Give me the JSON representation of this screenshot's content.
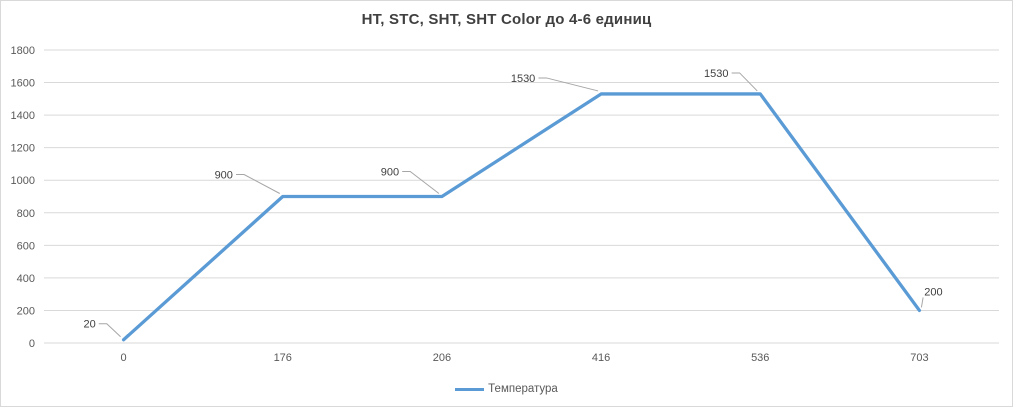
{
  "chart_data": {
    "type": "line",
    "title": "HT, STC, SHT, SHT Color до 4-6 единиц",
    "categories": [
      "0",
      "176",
      "206",
      "416",
      "536",
      "703"
    ],
    "series": [
      {
        "name": "Температура",
        "values": [
          20,
          900,
          900,
          1530,
          1530,
          200
        ]
      }
    ],
    "data_labels": [
      "20",
      "900",
      "900",
      "1530",
      "1530",
      "200"
    ],
    "yticks": [
      0,
      200,
      400,
      600,
      800,
      1000,
      1200,
      1400,
      1600,
      1800
    ],
    "ylim": [
      0,
      1800
    ],
    "grid": true,
    "legend_position": "bottom",
    "xlabel": "",
    "ylabel": "",
    "colors": {
      "series": "#5b9bd5",
      "gridline": "#d9d9d9",
      "axis_text": "#595959",
      "data_label_text": "#404040",
      "title_text": "#404040",
      "leader_line": "#a6a6a6",
      "border": "#d9d9d9",
      "background": "#ffffff"
    }
  }
}
